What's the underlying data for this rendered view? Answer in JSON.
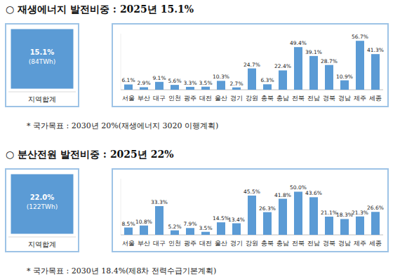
{
  "chart_data": [
    {
      "type": "bar",
      "title": "○ 재생에너지 발전비중 : 2025년 15.1%",
      "categories": [
        "서울",
        "부산",
        "대구",
        "인천",
        "광주",
        "대전",
        "울산",
        "경기",
        "강원",
        "충북",
        "충남",
        "전북",
        "전남",
        "경북",
        "경남",
        "제주",
        "세종"
      ],
      "values": [
        6.1,
        2.9,
        9.1,
        5.6,
        3.3,
        3.5,
        10.3,
        2.7,
        24.7,
        6.3,
        22.4,
        49.4,
        39.1,
        28.7,
        10.9,
        56.7,
        41.3
      ],
      "value_labels": [
        "6.1%",
        "2.9%",
        "9.1%",
        "5.6%",
        "3.3%",
        "3.5%",
        "10.3%",
        "2.7%",
        "24.7%",
        "6.3%",
        "22.4%",
        "49.4%",
        "39.1%",
        "28.7%",
        "10.9%",
        "56.7%",
        "41.3%"
      ],
      "color": "#5b9bd5",
      "ylim": [
        0,
        65
      ],
      "grid": false,
      "data_labels": true,
      "tick_labels": "x",
      "total": {
        "value": 15.1,
        "value_label": "15.1%",
        "energy": "(84TWh)",
        "label": "지역합계"
      },
      "note": "* 국가목표 : 2030년 20%(재생에너지 3020 이행계획)"
    },
    {
      "type": "bar",
      "title": "○ 분산전원 발전비중 : 2025년 22%",
      "categories": [
        "서울",
        "부산",
        "대구",
        "인천",
        "광주",
        "대전",
        "울산",
        "경기",
        "강원",
        "충북",
        "충남",
        "전북",
        "전남",
        "경북",
        "경남",
        "제주",
        "세종"
      ],
      "values": [
        8.5,
        10.8,
        33.3,
        5.2,
        7.9,
        3.5,
        14.5,
        13.4,
        45.5,
        26.3,
        41.8,
        50.0,
        43.6,
        21.1,
        18.3,
        21.3,
        26.6
      ],
      "value_labels": [
        "8.5%",
        "10.8%",
        "33.3%",
        "5.2%",
        "7.9%",
        "3.5%",
        "14.5%",
        "13.4%",
        "45.5%",
        "26.3%",
        "41.8%",
        "50.0%",
        "43.6%",
        "21.1%",
        "18.3%",
        "21.3%",
        "26.6%"
      ],
      "color": "#5b9bd5",
      "ylim": [
        0,
        65
      ],
      "grid": false,
      "data_labels": true,
      "tick_labels": "x",
      "total": {
        "value": 22.0,
        "value_label": "22.0%",
        "energy": "(122TWh)",
        "label": "지역합계"
      },
      "note": "* 국가목표 : 2030년 18.4%(제8차 전력수급기본계획)"
    }
  ]
}
